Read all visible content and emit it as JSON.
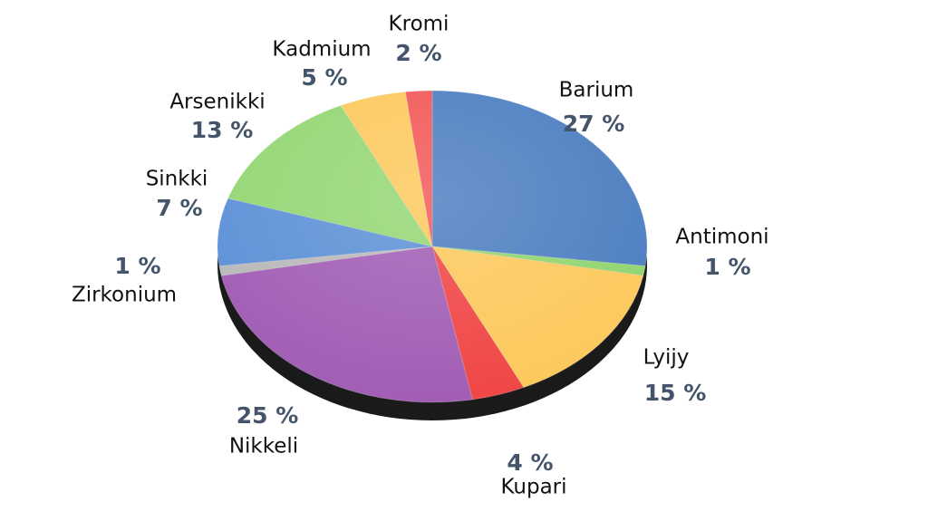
{
  "chart_data": {
    "type": "pie",
    "categories": [
      "Barium",
      "Antimoni",
      "Lyijy",
      "Kupari",
      "Nikkeli",
      "Zirkonium",
      "Sinkki",
      "Arsenikki",
      "Kadmium",
      "Kromi"
    ],
    "values": [
      27,
      1,
      15,
      4,
      25,
      1,
      7,
      13,
      5,
      2
    ],
    "value_labels": [
      "27 %",
      "1 %",
      "15 %",
      "4 %",
      "25 %",
      "1 %",
      "7 %",
      "13 %",
      "5 %",
      "2 %"
    ],
    "colors": [
      "#4a7cc0",
      "#8fd46e",
      "#fcc85a",
      "#f04444",
      "#a05cb4",
      "#b8b8b8",
      "#5b8fd6",
      "#92d672",
      "#fcc85a",
      "#f25555"
    ]
  }
}
